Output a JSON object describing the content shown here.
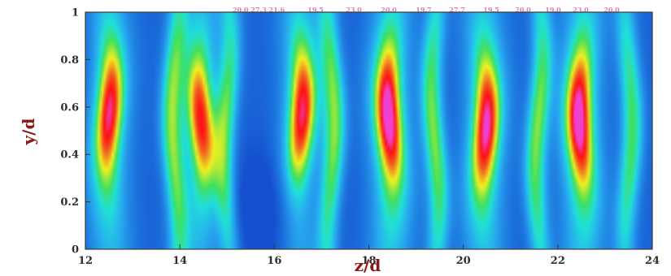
{
  "chart_data": {
    "type": "heatmap",
    "title": "",
    "xlabel": "z/d",
    "ylabel": "y/d",
    "xlim": [
      12,
      24
    ],
    "ylim": [
      0,
      1
    ],
    "x_ticks": [
      "12",
      "14",
      "16",
      "18",
      "20",
      "22",
      "24"
    ],
    "y_ticks": [
      "0",
      "0.2",
      "0.4",
      "0.6",
      "0.8",
      "1"
    ],
    "colormap": [
      "#1550d0",
      "#28a8f0",
      "#20e0d8",
      "#40e060",
      "#f0f020",
      "#f06020",
      "#ff1010",
      "#f040d0"
    ],
    "grid": false,
    "legend_position": "top",
    "streaks": [
      {
        "z": 12.5,
        "y_center": 0.58,
        "amplitude": 0.85
      },
      {
        "z": 14.45,
        "y_center": 0.55,
        "amplitude": 0.78
      },
      {
        "z": 16.55,
        "y_center": 0.58,
        "amplitude": 0.84
      },
      {
        "z": 18.45,
        "y_center": 0.57,
        "amplitude": 0.98
      },
      {
        "z": 20.45,
        "y_center": 0.52,
        "amplitude": 0.9
      },
      {
        "z": 22.5,
        "y_center": 0.55,
        "amplitude": 0.97
      }
    ],
    "secondary_bands": [
      {
        "z": 13.9,
        "amplitude": 0.45
      },
      {
        "z": 15.0,
        "amplitude": 0.4
      },
      {
        "z": 17.2,
        "amplitude": 0.45
      },
      {
        "z": 19.4,
        "amplitude": 0.45
      },
      {
        "z": 21.6,
        "amplitude": 0.45
      },
      {
        "z": 23.5,
        "amplitude": 0.4
      }
    ],
    "legend_labels": [
      "20.0 27.3 21.6",
      "19.5",
      "23.0",
      "20.0",
      "19.7",
      "27.7",
      "19.5",
      "20.0",
      "19.0",
      "23.0",
      "20.0"
    ]
  }
}
